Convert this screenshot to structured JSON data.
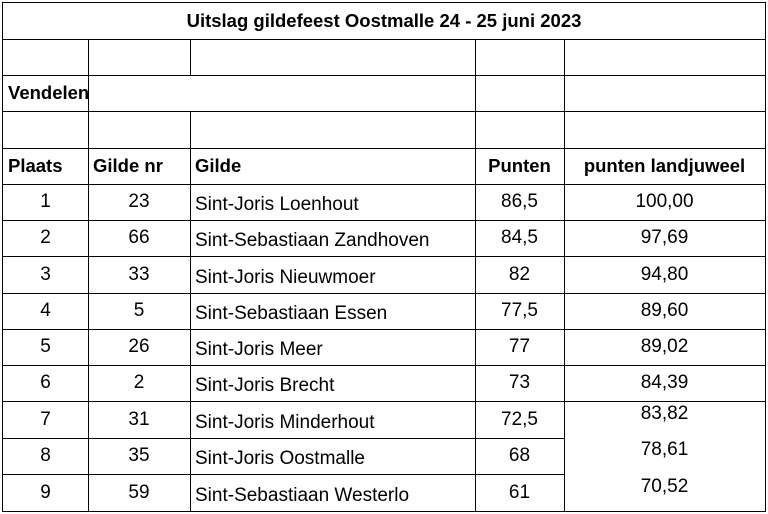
{
  "title": "Uitslag gildefeest Oostmalle 24 - 25 juni 2023",
  "section": "Vendelen",
  "headers": [
    "Plaats",
    "Gilde nr",
    "Gilde",
    "Punten",
    "punten landjuweel"
  ],
  "rows": [
    {
      "plaats": "1",
      "nr": "23",
      "gilde": "Sint-Joris Loenhout",
      "punten": "86,5",
      "landjuweel": "100,00"
    },
    {
      "plaats": "2",
      "nr": "66",
      "gilde": "Sint-Sebastiaan Zandhoven",
      "punten": "84,5",
      "landjuweel": "97,69"
    },
    {
      "plaats": "3",
      "nr": "33",
      "gilde": "Sint-Joris Nieuwmoer",
      "punten": "82",
      "landjuweel": "94,80"
    },
    {
      "plaats": "4",
      "nr": "5",
      "gilde": "Sint-Sebastiaan Essen",
      "punten": "77,5",
      "landjuweel": "89,60"
    },
    {
      "plaats": "5",
      "nr": "26",
      "gilde": "Sint-Joris Meer",
      "punten": "77",
      "landjuweel": "89,02"
    },
    {
      "plaats": "6",
      "nr": "2",
      "gilde": "Sint-Joris Brecht",
      "punten": "73",
      "landjuweel": "84,39"
    },
    {
      "plaats": "7",
      "nr": "31",
      "gilde": "Sint-Joris Minderhout",
      "punten": "72,5",
      "landjuweel": "83,82"
    },
    {
      "plaats": "8",
      "nr": "35",
      "gilde": "Sint-Joris Oostmalle",
      "punten": "68",
      "landjuweel": "78,61"
    },
    {
      "plaats": "9",
      "nr": "59",
      "gilde": "Sint-Sebastiaan Westerlo",
      "punten": "61",
      "landjuweel": "70,52"
    }
  ]
}
